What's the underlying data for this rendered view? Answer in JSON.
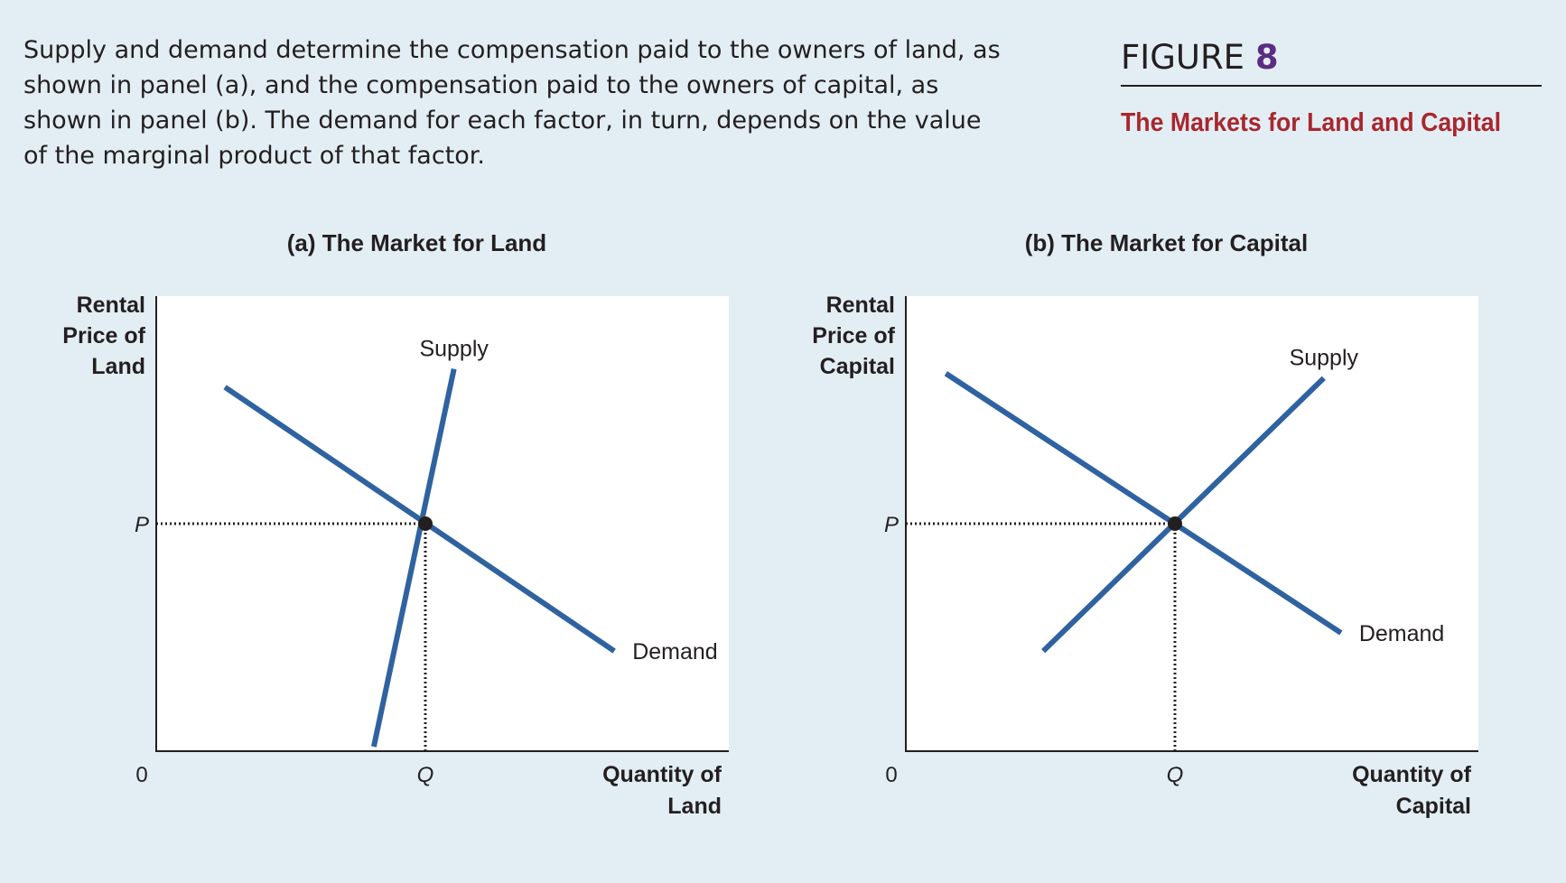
{
  "caption": "Supply and demand determine the compensation paid to the owners of land, as shown in panel (a), and the compensation paid to the owners of capital, as shown in panel (b). The demand for each factor, in turn, depends on the value of the marginal product of that factor.",
  "figure": {
    "label": "FIGURE",
    "number": "8",
    "title": "The Markets for Land and Capital"
  },
  "colors": {
    "background": "#e3eef4",
    "curve": "#2f62a0",
    "figure_number": "#5b2d82",
    "figure_title": "#a8272e"
  },
  "chart_data": [
    {
      "type": "line",
      "title": "(a) The Market for Land",
      "ylabel": [
        "Rental",
        "Price of",
        "Land"
      ],
      "xlabel": [
        "Quantity of",
        "Land"
      ],
      "origin_label": "0",
      "xlim": [
        0,
        100
      ],
      "ylim": [
        0,
        100
      ],
      "equilibrium": {
        "x": 47,
        "y": 50,
        "x_label": "Q",
        "y_label": "P"
      },
      "series": [
        {
          "name": "Supply",
          "points": [
            [
              38,
              1
            ],
            [
              52,
              84
            ]
          ]
        },
        {
          "name": "Demand",
          "points": [
            [
              12,
              80
            ],
            [
              80,
              22
            ]
          ]
        }
      ]
    },
    {
      "type": "line",
      "title": "(b) The Market for Capital",
      "ylabel": [
        "Rental",
        "Price of",
        "Capital"
      ],
      "xlabel": [
        "Quantity of",
        "Capital"
      ],
      "origin_label": "0",
      "xlim": [
        0,
        100
      ],
      "ylim": [
        0,
        100
      ],
      "equilibrium": {
        "x": 47,
        "y": 50,
        "x_label": "Q",
        "y_label": "P"
      },
      "series": [
        {
          "name": "Supply",
          "points": [
            [
              24,
              22
            ],
            [
              73,
              82
            ]
          ]
        },
        {
          "name": "Demand",
          "points": [
            [
              7,
              83
            ],
            [
              76,
              26
            ]
          ]
        }
      ]
    }
  ]
}
